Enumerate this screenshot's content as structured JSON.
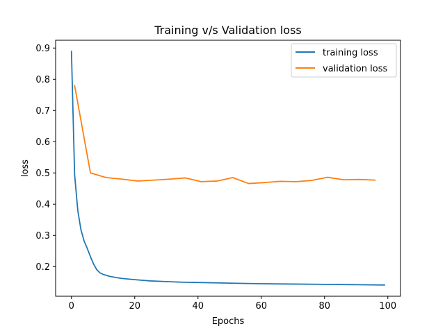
{
  "chart_data": {
    "type": "line",
    "title": "Training v/s Validation loss",
    "xlabel": "Epochs",
    "ylabel": "loss",
    "xlim": [
      -5,
      104
    ],
    "ylim": [
      0.105,
      0.925
    ],
    "xticks": [
      0,
      20,
      40,
      60,
      80,
      100
    ],
    "yticks": [
      0.2,
      0.3,
      0.4,
      0.5,
      0.6,
      0.7,
      0.8,
      0.9
    ],
    "grid": false,
    "legend_position": "top-right",
    "series": [
      {
        "name": "training loss",
        "color": "#1f77b4",
        "x": [
          0,
          1,
          2,
          3,
          4,
          5,
          6,
          7,
          8,
          9,
          10,
          12,
          14,
          16,
          18,
          20,
          25,
          30,
          35,
          40,
          50,
          60,
          70,
          80,
          90,
          99
        ],
        "y": [
          0.89,
          0.495,
          0.38,
          0.318,
          0.282,
          0.258,
          0.232,
          0.208,
          0.19,
          0.18,
          0.175,
          0.169,
          0.165,
          0.162,
          0.16,
          0.158,
          0.154,
          0.152,
          0.15,
          0.149,
          0.147,
          0.145,
          0.144,
          0.143,
          0.142,
          0.141
        ]
      },
      {
        "name": "validation loss",
        "color": "#ff7f0e",
        "x": [
          1,
          6,
          11,
          16,
          21,
          26,
          31,
          36,
          41,
          46,
          51,
          56,
          61,
          66,
          71,
          76,
          81,
          86,
          91,
          96
        ],
        "y": [
          0.78,
          0.5,
          0.485,
          0.48,
          0.474,
          0.477,
          0.48,
          0.484,
          0.472,
          0.474,
          0.485,
          0.466,
          0.469,
          0.473,
          0.472,
          0.476,
          0.486,
          0.478,
          0.479,
          0.477
        ]
      }
    ]
  }
}
